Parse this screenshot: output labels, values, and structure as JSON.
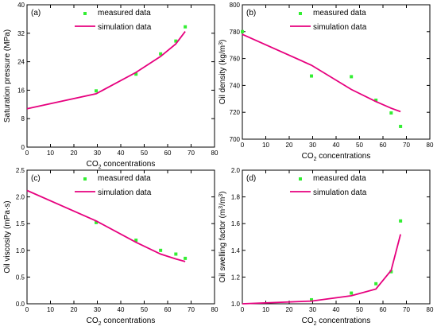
{
  "colors": {
    "measured": "#33ee33",
    "simulation": "#e6007e",
    "axis": "#000000"
  },
  "legend": {
    "measured": "measured data",
    "simulation": "simulation data",
    "placement": "top-right"
  },
  "chart_data": [
    {
      "id": "a",
      "type": "line",
      "panel_label": "(a)",
      "xlabel_main": "CO",
      "xlabel_sub": "2",
      "xlabel_rest": " concentrations",
      "ylabel": "Saturation pressure (MPa)",
      "xlim": [
        0,
        80
      ],
      "ylim": [
        0,
        40
      ],
      "xticks": [
        0,
        10,
        20,
        30,
        40,
        50,
        60,
        70,
        80
      ],
      "yticks": [
        0,
        8,
        16,
        24,
        32,
        40
      ],
      "series": [
        {
          "name": "measured data",
          "style": "marker",
          "x": [
            29.5,
            46.5,
            57,
            63.5,
            67.5
          ],
          "y": [
            15.8,
            20.5,
            26.2,
            29.8,
            33.8
          ]
        },
        {
          "name": "simulation data",
          "style": "line",
          "x": [
            0,
            29.5,
            46.5,
            57,
            63.5,
            67.5
          ],
          "y": [
            10.8,
            15.0,
            21.0,
            25.5,
            29.0,
            32.5
          ]
        }
      ]
    },
    {
      "id": "b",
      "type": "line",
      "panel_label": "(b)",
      "xlabel_main": "CO",
      "xlabel_sub": "2",
      "xlabel_rest": " concentrations",
      "ylabel": "Oil density (kg/m",
      "ylabel_sup": "3",
      "ylabel_end": ")",
      "xlim": [
        0,
        80
      ],
      "ylim": [
        700,
        800
      ],
      "xticks": [
        0,
        10,
        20,
        30,
        40,
        50,
        60,
        70,
        80
      ],
      "yticks": [
        700,
        720,
        740,
        760,
        780,
        800
      ],
      "series": [
        {
          "name": "measured data",
          "style": "marker",
          "x": [
            0,
            29.5,
            46.5,
            57,
            63.5,
            67.5
          ],
          "y": [
            780,
            747,
            746.5,
            729,
            719.5,
            709.5
          ]
        },
        {
          "name": "simulation data",
          "style": "line",
          "x": [
            0,
            29.5,
            46.5,
            57,
            63.5,
            67.5
          ],
          "y": [
            778,
            755,
            737,
            728,
            723,
            720.5
          ]
        }
      ]
    },
    {
      "id": "c",
      "type": "line",
      "panel_label": "(c)",
      "xlabel_main": "CO",
      "xlabel_sub": "2",
      "xlabel_rest": " concentrations",
      "ylabel": "Oil viscosity (mPa·s)",
      "xlim": [
        0,
        80
      ],
      "ylim": [
        0.0,
        2.5
      ],
      "xticks": [
        0,
        10,
        20,
        30,
        40,
        50,
        60,
        70,
        80
      ],
      "yticks": [
        0.0,
        0.5,
        1.0,
        1.5,
        2.0,
        2.5
      ],
      "series": [
        {
          "name": "measured data",
          "style": "marker",
          "x": [
            29.5,
            46.5,
            57,
            63.5,
            67.5
          ],
          "y": [
            1.52,
            1.19,
            1.0,
            0.93,
            0.85
          ]
        },
        {
          "name": "simulation data",
          "style": "line",
          "x": [
            0,
            29.5,
            46.5,
            57,
            63.5,
            67.5
          ],
          "y": [
            2.12,
            1.55,
            1.15,
            0.93,
            0.84,
            0.79
          ]
        }
      ]
    },
    {
      "id": "d",
      "type": "line",
      "panel_label": "(d)",
      "xlabel_main": "CO",
      "xlabel_sub": "2",
      "xlabel_rest": " concentrations",
      "ylabel": "Oil swelling factor (m",
      "ylabel_sup": "3",
      "ylabel_mid": "/m",
      "ylabel_sup2": "3",
      "ylabel_end": ")",
      "xlim": [
        0,
        80
      ],
      "ylim": [
        1.0,
        2.0
      ],
      "xticks": [
        0,
        10,
        20,
        30,
        40,
        50,
        60,
        70,
        80
      ],
      "yticks": [
        1.0,
        1.2,
        1.4,
        1.6,
        1.8,
        2.0
      ],
      "series": [
        {
          "name": "measured data",
          "style": "marker",
          "x": [
            29.5,
            46.5,
            57,
            63.5,
            67.5
          ],
          "y": [
            1.03,
            1.08,
            1.15,
            1.24,
            1.62
          ]
        },
        {
          "name": "simulation data",
          "style": "line",
          "x": [
            0,
            29.5,
            46.5,
            57,
            63.5,
            67.5
          ],
          "y": [
            1.0,
            1.02,
            1.06,
            1.11,
            1.25,
            1.52
          ]
        }
      ]
    }
  ]
}
